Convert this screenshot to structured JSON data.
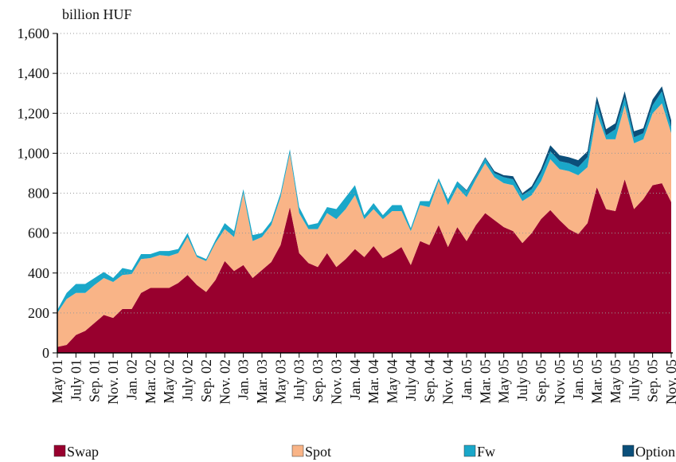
{
  "chart_data": {
    "type": "stacked_area",
    "y_label": "billion HUF",
    "categories": [
      "May 01",
      null,
      "July 01",
      null,
      "Sep. 01",
      null,
      "Nov. 01",
      null,
      "Jan. 02",
      null,
      "Mar. 02",
      null,
      "May 02",
      null,
      "July 02",
      null,
      "Sep. 02",
      null,
      "Nov. 02",
      null,
      "Jan. 03",
      null,
      "Mar. 03",
      null,
      "May 03",
      null,
      "July 03",
      null,
      "Sep. 03",
      null,
      "Nov. 03",
      null,
      "Jan. 04",
      null,
      "Mar. 04",
      null,
      "May 04",
      null,
      "July 04",
      null,
      "Sep. 04",
      null,
      "Nov. 04",
      null,
      "Jan. 05",
      null,
      "Mar. 05",
      null,
      "May 05",
      null,
      "July 05",
      null,
      "Sep. 05",
      null,
      "Nov. 05",
      null,
      "Jan. 05",
      null,
      "Mar. 05",
      null,
      "May 05",
      null,
      "July 05",
      null,
      "Sep. 05",
      null,
      "Nov. 05"
    ],
    "series": [
      {
        "name": "Swap",
        "color": "#98002e",
        "values": [
          30,
          40,
          90,
          110,
          150,
          190,
          175,
          220,
          220,
          300,
          325,
          325,
          325,
          350,
          390,
          340,
          305,
          365,
          460,
          410,
          440,
          375,
          415,
          455,
          540,
          730,
          500,
          450,
          430,
          500,
          430,
          470,
          520,
          480,
          535,
          475,
          500,
          530,
          440,
          560,
          540,
          640,
          530,
          630,
          560,
          640,
          700,
          665,
          630,
          610,
          550,
          600,
          670,
          715,
          665,
          620,
          595,
          650,
          830,
          720,
          710,
          870,
          720,
          770,
          840,
          850,
          755
        ]
      },
      {
        "name": "Spot",
        "color": "#f9b487",
        "values": [
          170,
          230,
          210,
          190,
          190,
          185,
          180,
          170,
          175,
          170,
          150,
          165,
          160,
          150,
          190,
          140,
          155,
          185,
          160,
          170,
          360,
          185,
          165,
          185,
          240,
          270,
          200,
          170,
          190,
          200,
          240,
          250,
          270,
          190,
          185,
          195,
          210,
          180,
          170,
          180,
          190,
          220,
          210,
          200,
          220,
          230,
          250,
          215,
          220,
          230,
          210,
          190,
          190,
          255,
          255,
          290,
          295,
          280,
          370,
          350,
          360,
          370,
          330,
          300,
          360,
          400,
          345
        ]
      },
      {
        "name": "Fw",
        "color": "#1aa7c9",
        "values": [
          15,
          30,
          45,
          45,
          35,
          30,
          20,
          35,
          20,
          25,
          20,
          20,
          25,
          20,
          20,
          10,
          10,
          15,
          30,
          30,
          20,
          30,
          20,
          20,
          20,
          20,
          30,
          20,
          30,
          30,
          50,
          60,
          50,
          20,
          30,
          20,
          30,
          30,
          15,
          20,
          30,
          15,
          30,
          30,
          30,
          20,
          25,
          20,
          30,
          30,
          30,
          30,
          40,
          40,
          40,
          40,
          40,
          50,
          50,
          20,
          50,
          40,
          30,
          30,
          40,
          60,
          30
        ]
      },
      {
        "name": "Option",
        "color": "#0b4f7a",
        "values": [
          0,
          0,
          0,
          0,
          0,
          0,
          0,
          0,
          0,
          0,
          0,
          0,
          0,
          0,
          0,
          0,
          0,
          0,
          0,
          0,
          0,
          0,
          0,
          0,
          0,
          0,
          0,
          0,
          0,
          0,
          0,
          0,
          0,
          0,
          0,
          0,
          0,
          0,
          0,
          0,
          0,
          0,
          0,
          0,
          5,
          5,
          5,
          10,
          10,
          15,
          10,
          15,
          20,
          30,
          30,
          30,
          35,
          30,
          35,
          30,
          30,
          30,
          30,
          25,
          30,
          25,
          35
        ]
      }
    ],
    "ylim": [
      0,
      1600
    ],
    "yticks": [
      0,
      200,
      400,
      600,
      800,
      {
        "value": 1000,
        "label": "1,000"
      },
      {
        "value": 1200,
        "label": "1,200"
      },
      {
        "value": 1400,
        "label": "1,400"
      },
      {
        "value": 1600,
        "label": "1,600"
      }
    ],
    "grid": true,
    "legend": "bottom"
  }
}
